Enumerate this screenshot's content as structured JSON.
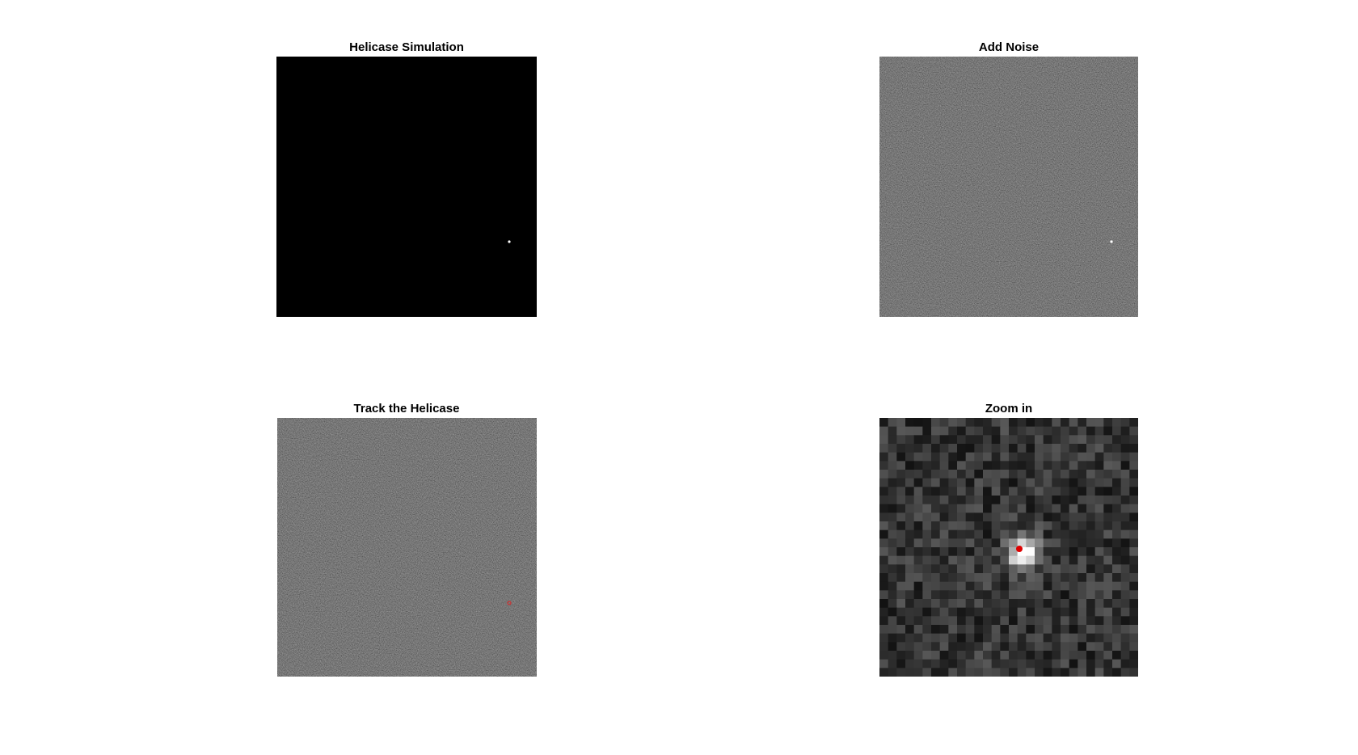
{
  "panels": [
    {
      "title": "Helicase Simulation"
    },
    {
      "title": "Add Noise"
    },
    {
      "title": "Track the Helicase"
    },
    {
      "title": "Zoom in"
    }
  ]
}
